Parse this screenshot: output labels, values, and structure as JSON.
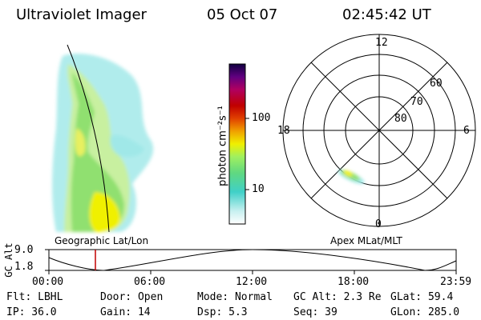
{
  "header": {
    "instrument": "Ultraviolet Imager",
    "date": "05 Oct 07",
    "time": "02:45:42 UT"
  },
  "geo_panel": {
    "label": "Geographic Lat/Lon"
  },
  "colorbar": {
    "unit_label": "photon cm⁻²s⁻¹",
    "tick_100": "100",
    "tick_10": "10"
  },
  "polar_plot": {
    "mlt_12": "12",
    "mlt_18": "18",
    "mlt_6": "6",
    "mlt_0": "0",
    "lat_60": "60",
    "lat_70": "70",
    "lat_80": "80",
    "label": "Apex MLat/MLT"
  },
  "altitude_strip": {
    "ylabel": "GC Alt",
    "ytick_top": "9.0",
    "ytick_bottom": "1.8",
    "xticks": [
      "00:00",
      "06:00",
      "12:00",
      "18:00",
      "23:59"
    ]
  },
  "status": {
    "flt": "Flt: LBHL",
    "door": "Door: Open",
    "mode": "Mode: Normal",
    "gc_alt": "GC Alt: 2.3 Re",
    "glat": "GLat:  59.4",
    "ip": "IP: 36.0",
    "gain": "Gain: 14",
    "dsp": "Dsp:    5.3",
    "seq": "Seq: 39",
    "glon": "GLon: 285.0"
  },
  "colors": {
    "bright_yellow": "#f0f000",
    "green": "#8ce060",
    "light_green": "#c8f0a0",
    "cyan": "#a0e8e8",
    "current_time_marker": "#c00000"
  }
}
